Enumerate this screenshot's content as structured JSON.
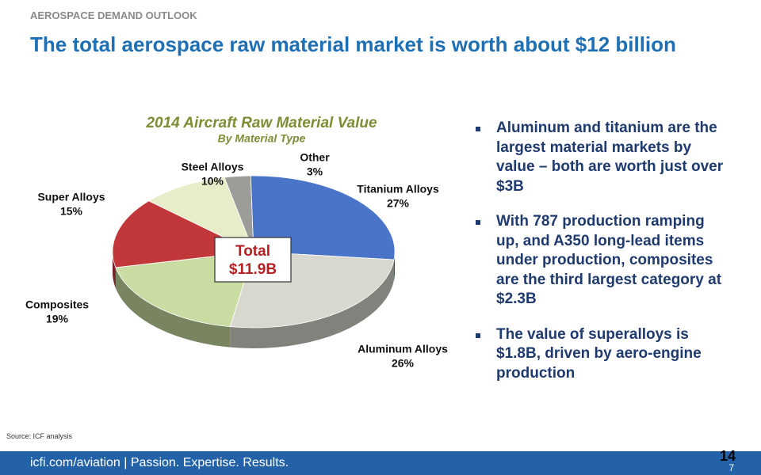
{
  "header": {
    "kicker": "AEROSPACE DEMAND OUTLOOK",
    "title": "The total aerospace raw material market is worth about $12 billion"
  },
  "chart_data": {
    "type": "pie",
    "title": "2014 Aircraft Raw Material Value",
    "subtitle": "By Material Type",
    "categories": [
      "Other",
      "Titanium Alloys",
      "Aluminum Alloys",
      "Composites",
      "Super Alloys",
      "Steel Alloys"
    ],
    "values": [
      3,
      27,
      26,
      19,
      15,
      10
    ],
    "value_labels": [
      "3%",
      "27%",
      "26%",
      "19%",
      "15%",
      "10%"
    ],
    "colors": [
      "#9c9c98",
      "#4a74c8",
      "#d9d8cf",
      "#c9dca2",
      "#c2383a",
      "#e8edc9"
    ],
    "annotation": {
      "label": "Total",
      "value": "$11.9B"
    }
  },
  "bullets": [
    "Aluminum and titanium are the largest material markets by value – both are worth just over $3B",
    "With 787 production ramping up, and A350 long-lead items under production, composites are the third largest category at $2.3B",
    "The value of superalloys is $1.8B, driven by aero-engine production"
  ],
  "source": "Source: ICF analysis",
  "footer": {
    "site": "icfi.com/aviation",
    "tagline": "| Passion. Expertise. Results.",
    "page": "14",
    "sub_page": "7"
  }
}
